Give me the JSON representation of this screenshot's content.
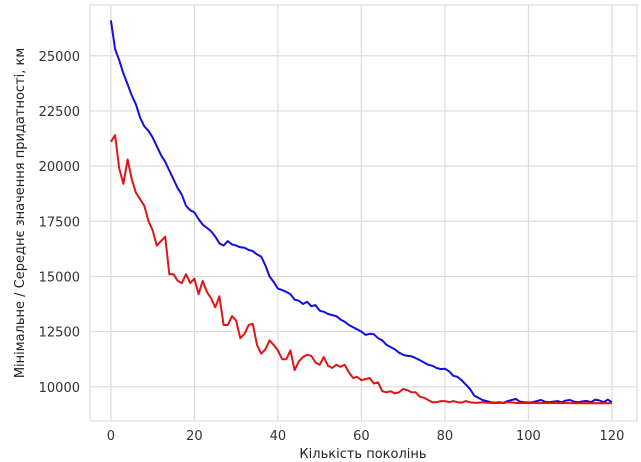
{
  "chart_data": {
    "type": "line",
    "title": "",
    "xlabel": "Кількість поколінь",
    "ylabel": "Мінімальне / Середнє значення придатності, км",
    "xlim": [
      -5,
      126
    ],
    "ylim": [
      8450,
      27300
    ],
    "xticks": [
      0,
      20,
      40,
      60,
      80,
      100,
      120
    ],
    "yticks": [
      10000,
      12500,
      15000,
      17500,
      20000,
      22500,
      25000
    ],
    "grid": true,
    "series": [
      {
        "color": "#1010e0",
        "x": [
          0,
          1,
          2,
          3,
          4,
          5,
          6,
          7,
          8,
          9,
          10,
          11,
          12,
          13,
          14,
          15,
          16,
          17,
          18,
          19,
          20,
          21,
          22,
          23,
          24,
          25,
          26,
          27,
          28,
          29,
          30,
          31,
          32,
          33,
          34,
          35,
          36,
          37,
          38,
          39,
          40,
          41,
          42,
          43,
          44,
          45,
          46,
          47,
          48,
          49,
          50,
          51,
          52,
          53,
          54,
          55,
          56,
          57,
          58,
          59,
          60,
          61,
          62,
          63,
          64,
          65,
          66,
          67,
          68,
          69,
          70,
          71,
          72,
          73,
          74,
          75,
          76,
          77,
          78,
          79,
          80,
          81,
          82,
          83,
          84,
          85,
          86,
          87,
          88,
          89,
          90,
          91,
          92,
          93,
          94,
          95,
          96,
          97,
          98,
          99,
          100,
          101,
          102,
          103,
          104,
          105,
          106,
          107,
          108,
          109,
          110,
          111,
          112,
          113,
          114,
          115,
          116,
          117,
          118,
          119,
          120
        ],
        "values": [
          26600,
          25300,
          24800,
          24200,
          23700,
          23200,
          22800,
          22200,
          21800,
          21600,
          21300,
          20900,
          20500,
          20200,
          19800,
          19400,
          19000,
          18700,
          18200,
          18000,
          17900,
          17600,
          17350,
          17200,
          17050,
          16800,
          16500,
          16400,
          16600,
          16450,
          16400,
          16320,
          16300,
          16200,
          16150,
          16000,
          15900,
          15500,
          15000,
          14750,
          14450,
          14380,
          14300,
          14200,
          13950,
          13900,
          13750,
          13850,
          13650,
          13700,
          13450,
          13400,
          13300,
          13250,
          13200,
          13050,
          12950,
          12800,
          12700,
          12600,
          12500,
          12350,
          12400,
          12380,
          12200,
          12100,
          11900,
          11800,
          11700,
          11550,
          11450,
          11400,
          11380,
          11300,
          11200,
          11100,
          11000,
          10950,
          10850,
          10800,
          10820,
          10700,
          10500,
          10450,
          10300,
          10100,
          9900,
          9600,
          9500,
          9400,
          9350,
          9300,
          9280,
          9300,
          9270,
          9350,
          9400,
          9450,
          9320,
          9300,
          9290,
          9300,
          9350,
          9400,
          9320,
          9300,
          9330,
          9350,
          9300,
          9380,
          9400,
          9320,
          9300,
          9340,
          9360,
          9300,
          9420,
          9380,
          9300,
          9420,
          9300
        ],
        "line_width": 2
      },
      {
        "color": "#e01515",
        "x": [
          0,
          1,
          2,
          3,
          4,
          5,
          6,
          7,
          8,
          9,
          10,
          11,
          12,
          13,
          14,
          15,
          16,
          17,
          18,
          19,
          20,
          21,
          22,
          23,
          24,
          25,
          26,
          27,
          28,
          29,
          30,
          31,
          32,
          33,
          34,
          35,
          36,
          37,
          38,
          39,
          40,
          41,
          42,
          43,
          44,
          45,
          46,
          47,
          48,
          49,
          50,
          51,
          52,
          53,
          54,
          55,
          56,
          57,
          58,
          59,
          60,
          61,
          62,
          63,
          64,
          65,
          66,
          67,
          68,
          69,
          70,
          71,
          72,
          73,
          74,
          75,
          76,
          77,
          78,
          79,
          80,
          81,
          82,
          83,
          84,
          85,
          86,
          87,
          88,
          89,
          90,
          91,
          92,
          93,
          94,
          95,
          96,
          97,
          98,
          99,
          100,
          101,
          102,
          103,
          104,
          105,
          106,
          107,
          108,
          109,
          110,
          111,
          112,
          113,
          114,
          115,
          116,
          117,
          118,
          119,
          120
        ],
        "values": [
          21100,
          21400,
          19900,
          19200,
          20300,
          19400,
          18800,
          18500,
          18200,
          17500,
          17100,
          16400,
          16600,
          16800,
          15100,
          15100,
          14800,
          14700,
          15100,
          14700,
          14900,
          14200,
          14800,
          14300,
          14000,
          13600,
          14100,
          12800,
          12800,
          13200,
          13000,
          12200,
          12400,
          12800,
          12850,
          11900,
          11500,
          11700,
          12100,
          11900,
          11650,
          11250,
          11250,
          11650,
          10750,
          11150,
          11350,
          11450,
          11400,
          11100,
          11000,
          11350,
          10950,
          10850,
          11000,
          10900,
          11000,
          10650,
          10400,
          10450,
          10300,
          10350,
          10400,
          10150,
          10200,
          9800,
          9750,
          9800,
          9700,
          9750,
          9900,
          9850,
          9750,
          9750,
          9550,
          9500,
          9400,
          9300,
          9300,
          9350,
          9350,
          9300,
          9350,
          9300,
          9280,
          9350,
          9300,
          9280,
          9280,
          9300,
          9280,
          9270,
          9260,
          9270,
          9260,
          9300,
          9290,
          9270,
          9260,
          9270,
          9260,
          9270,
          9260,
          9260,
          9270,
          9260,
          9270,
          9260,
          9260,
          9270,
          9260,
          9250,
          9260,
          9250,
          9260,
          9250,
          9260,
          9250,
          9260,
          9250,
          9260
        ],
        "line_width": 2
      }
    ]
  }
}
